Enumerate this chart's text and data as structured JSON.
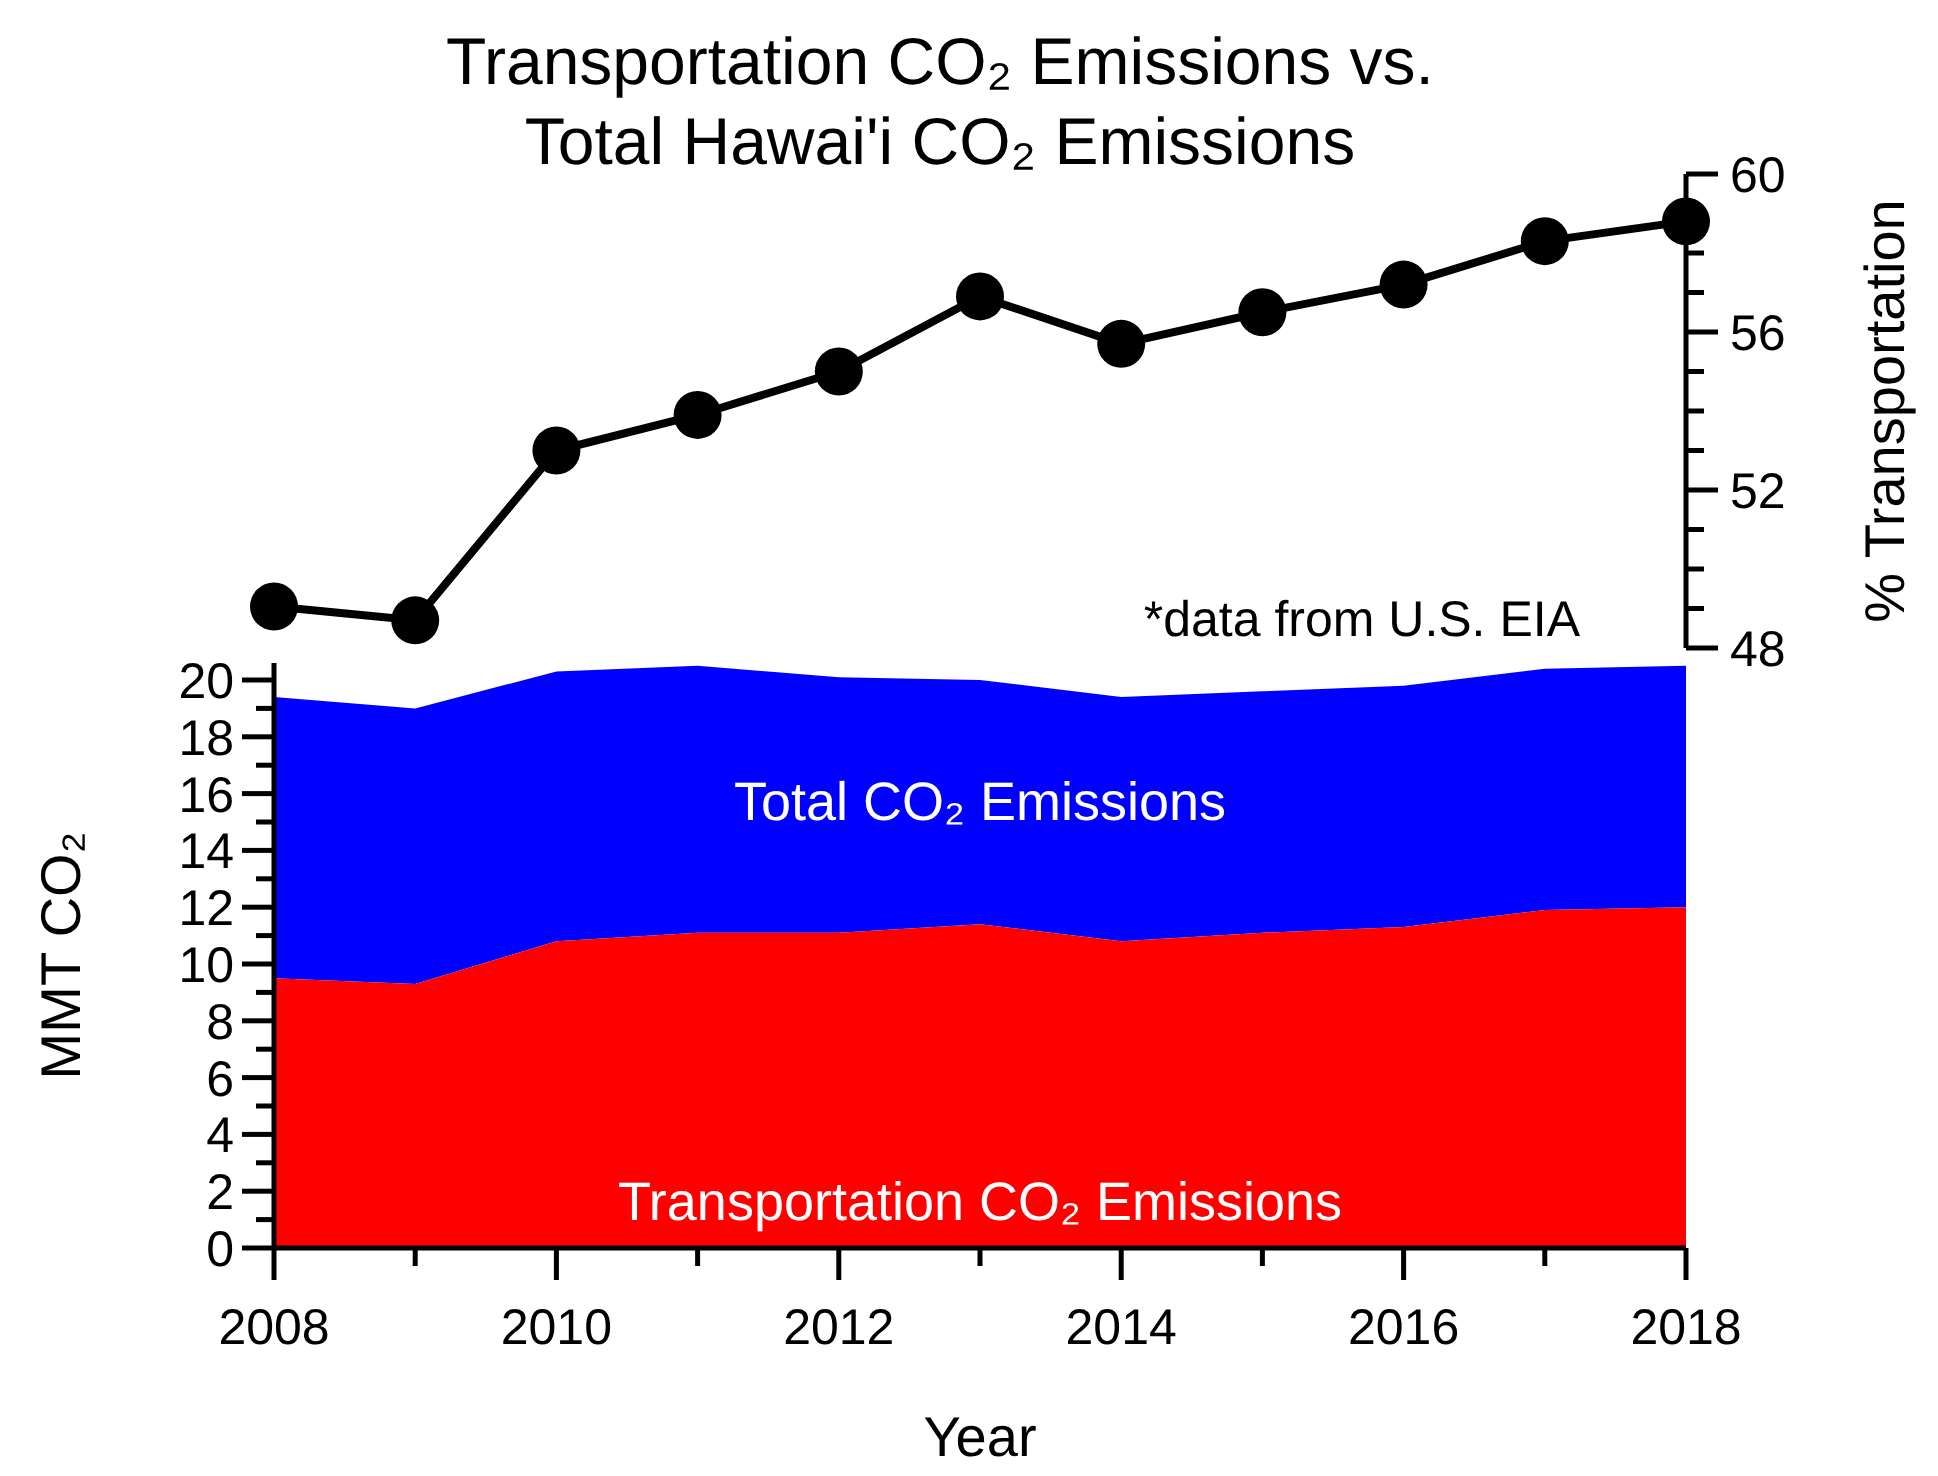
{
  "chart_data": [
    {
      "type": "line",
      "title": "Transportation CO₂ Emissions vs. Total Hawai'i CO₂ Emissions",
      "ylabel": "% Transportation",
      "x": [
        2008,
        2009,
        2010,
        2011,
        2012,
        2013,
        2014,
        2015,
        2016,
        2017,
        2018
      ],
      "xlim": [
        2008,
        2018
      ],
      "ylim": [
        48,
        60
      ],
      "yticks": [
        48,
        {
          "value": 49,
          "label": null
        },
        {
          "value": 50,
          "label": null
        },
        {
          "value": 51,
          "label": null
        },
        52,
        {
          "value": 53,
          "label": null
        },
        {
          "value": 54,
          "label": null
        },
        {
          "value": 55,
          "label": null
        },
        56,
        {
          "value": 57,
          "label": null
        },
        {
          "value": 58,
          "label": null
        },
        {
          "value": 59,
          "label": null
        },
        60
      ],
      "tick_labels": "y",
      "marker": "circle",
      "line_style": "solid",
      "series": [
        {
          "color": "#000000",
          "values": [
            49.05,
            48.7,
            53.0,
            53.9,
            55.0,
            56.9,
            55.7,
            56.5,
            57.2,
            58.3,
            58.8
          ]
        }
      ],
      "annotations": [
        "*data from U.S. EIA"
      ]
    },
    {
      "type": "area",
      "xlabel": "Year",
      "ylabel": "MMT CO₂",
      "x": [
        2008,
        2009,
        2010,
        2011,
        2012,
        2013,
        2014,
        2015,
        2016,
        2017,
        2018
      ],
      "xlim": [
        2008,
        2018
      ],
      "ylim": [
        0,
        20.6
      ],
      "xticks": [
        2008,
        {
          "value": 2009,
          "label": null
        },
        2010,
        {
          "value": 2011,
          "label": null
        },
        2012,
        {
          "value": 2013,
          "label": null
        },
        2014,
        {
          "value": 2015,
          "label": null
        },
        2016,
        {
          "value": 2017,
          "label": null
        },
        2018
      ],
      "yticks": [
        0,
        {
          "value": 1,
          "label": null
        },
        2,
        {
          "value": 3,
          "label": null
        },
        4,
        {
          "value": 5,
          "label": null
        },
        6,
        {
          "value": 7,
          "label": null
        },
        8,
        {
          "value": 9,
          "label": null
        },
        10,
        {
          "value": 11,
          "label": null
        },
        12,
        {
          "value": 13,
          "label": null
        },
        14,
        {
          "value": 15,
          "label": null
        },
        16,
        {
          "value": 17,
          "label": null
        },
        18,
        {
          "value": 19,
          "label": null
        },
        20
      ],
      "series": [
        {
          "name": "Total CO₂ Emissions",
          "color": "#0000ff",
          "values": [
            19.4,
            19.0,
            20.3,
            20.5,
            20.1,
            20.0,
            19.4,
            19.6,
            19.8,
            20.4,
            20.5
          ]
        },
        {
          "name": "Transportation CO₂ Emissions",
          "color": "#ff0000",
          "values": [
            9.5,
            9.3,
            10.8,
            11.1,
            11.1,
            11.4,
            10.8,
            11.1,
            11.3,
            11.9,
            12.0
          ]
        }
      ]
    }
  ]
}
